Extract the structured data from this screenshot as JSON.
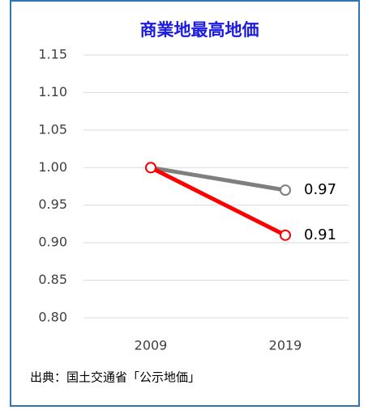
{
  "chart_data": {
    "type": "line",
    "title": "商業地最高地価",
    "categories": [
      "2009",
      "2019"
    ],
    "series": [
      {
        "color": "#7f7f7f",
        "values": [
          1.0,
          0.97
        ]
      },
      {
        "color": "#ff0000",
        "values": [
          1.0,
          0.91
        ]
      }
    ],
    "ylim": [
      0.8,
      1.15
    ],
    "yticks": [
      {
        "value": 0.8,
        "label": "0.80"
      },
      0.85,
      {
        "value": 0.9,
        "label": "0.90"
      },
      0.95,
      {
        "value": 1.0,
        "label": "1.00"
      },
      1.05,
      {
        "value": 1.1,
        "label": "1.10"
      },
      1.15
    ],
    "grid": true,
    "source": "出典：国土交通省「公示地価」"
  }
}
